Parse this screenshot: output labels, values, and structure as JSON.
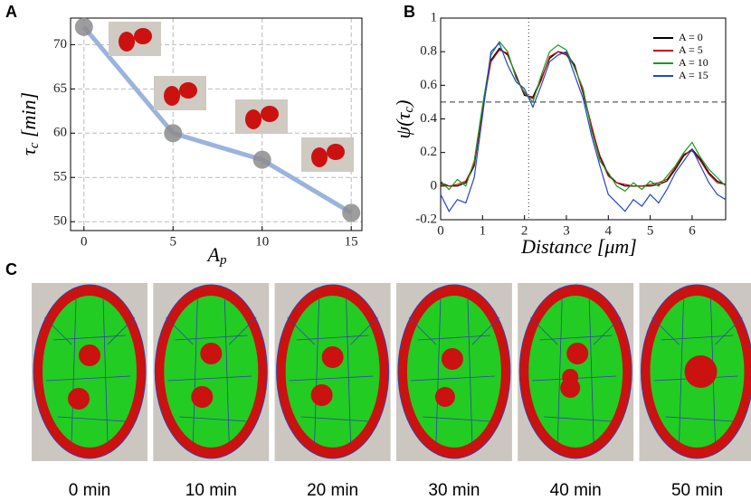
{
  "panel_labels": [
    "A",
    "B",
    "C"
  ],
  "chart_data": [
    {
      "type": "line",
      "x_label": {
        "text": "A",
        "sub": "p"
      },
      "y_label": {
        "text": "τ",
        "sub": "c",
        "suffix": " [min]"
      },
      "x": [
        0,
        5,
        10,
        15
      ],
      "values": [
        72,
        60,
        57,
        51
      ],
      "color": "#9ab4dc",
      "marker_color": "#8c8c8c",
      "xlim": [
        -0.75,
        15.6
      ],
      "ylim": [
        49,
        73
      ],
      "xticks": [
        0,
        5,
        10,
        15
      ],
      "yticks": [
        50,
        55,
        60,
        65,
        70
      ],
      "grid": true
    },
    {
      "type": "line",
      "x_label": {
        "text": "Distance [μm]"
      },
      "y_label": {
        "text": "ψ(τ",
        "sub": "c",
        "suffix": ")"
      },
      "x": [
        0,
        0.2,
        0.4,
        0.6,
        0.8,
        1.0,
        1.2,
        1.4,
        1.6,
        1.8,
        2.0,
        2.2,
        2.4,
        2.6,
        2.8,
        3.0,
        3.2,
        3.4,
        3.6,
        3.8,
        4.0,
        4.2,
        4.4,
        4.6,
        4.8,
        5.0,
        5.2,
        5.4,
        5.6,
        5.8,
        6.0,
        6.2,
        6.4,
        6.6,
        6.8
      ],
      "series": [
        {
          "name": "A = 0",
          "color": "#000000",
          "values": [
            0.02,
            0.0,
            0.0,
            0.02,
            0.12,
            0.45,
            0.75,
            0.82,
            0.78,
            0.66,
            0.54,
            0.53,
            0.64,
            0.76,
            0.8,
            0.79,
            0.72,
            0.55,
            0.35,
            0.18,
            0.07,
            0.02,
            0.0,
            0.0,
            0.0,
            0.0,
            0.01,
            0.03,
            0.1,
            0.18,
            0.22,
            0.16,
            0.08,
            0.03,
            0.01
          ]
        },
        {
          "name": "A = 5",
          "color": "#cc0000",
          "values": [
            0.01,
            0.0,
            0.01,
            0.03,
            0.13,
            0.46,
            0.74,
            0.81,
            0.79,
            0.65,
            0.55,
            0.52,
            0.63,
            0.77,
            0.8,
            0.78,
            0.71,
            0.56,
            0.36,
            0.17,
            0.06,
            0.02,
            0.01,
            0.0,
            0.0,
            0.01,
            0.02,
            0.04,
            0.11,
            0.19,
            0.21,
            0.15,
            0.07,
            0.02,
            0.01
          ]
        },
        {
          "name": "A = 10",
          "color": "#1a9a1a",
          "values": [
            0.03,
            -0.02,
            0.04,
            0.0,
            0.15,
            0.48,
            0.78,
            0.86,
            0.8,
            0.64,
            0.56,
            0.5,
            0.66,
            0.8,
            0.84,
            0.81,
            0.7,
            0.58,
            0.33,
            0.15,
            0.08,
            0.0,
            -0.03,
            0.02,
            -0.02,
            0.03,
            0.0,
            0.06,
            0.12,
            0.2,
            0.26,
            0.17,
            0.1,
            0.05,
            0.0
          ]
        },
        {
          "name": "A = 15",
          "color": "#2244cc",
          "values": [
            -0.05,
            -0.15,
            -0.08,
            -0.1,
            0.05,
            0.42,
            0.8,
            0.85,
            0.72,
            0.62,
            0.58,
            0.47,
            0.6,
            0.74,
            0.78,
            0.8,
            0.66,
            0.52,
            0.3,
            0.12,
            -0.05,
            -0.1,
            -0.15,
            -0.08,
            -0.12,
            -0.05,
            -0.1,
            -0.02,
            0.08,
            0.15,
            0.22,
            0.12,
            0.02,
            -0.05,
            -0.08
          ]
        }
      ],
      "hline": 0.5,
      "vline": 2.1,
      "xlim": [
        0,
        6.8
      ],
      "ylim": [
        -0.2,
        1
      ],
      "xticks": [
        0,
        1,
        2,
        3,
        4,
        5,
        6
      ],
      "yticks": [
        -0.2,
        0,
        0.2,
        0.4,
        0.6,
        0.8,
        1
      ],
      "grid": false,
      "legend": "upper right"
    }
  ],
  "snapshots": [
    "0 min",
    "10 min",
    "20 min",
    "30 min",
    "40 min",
    "50 min"
  ]
}
